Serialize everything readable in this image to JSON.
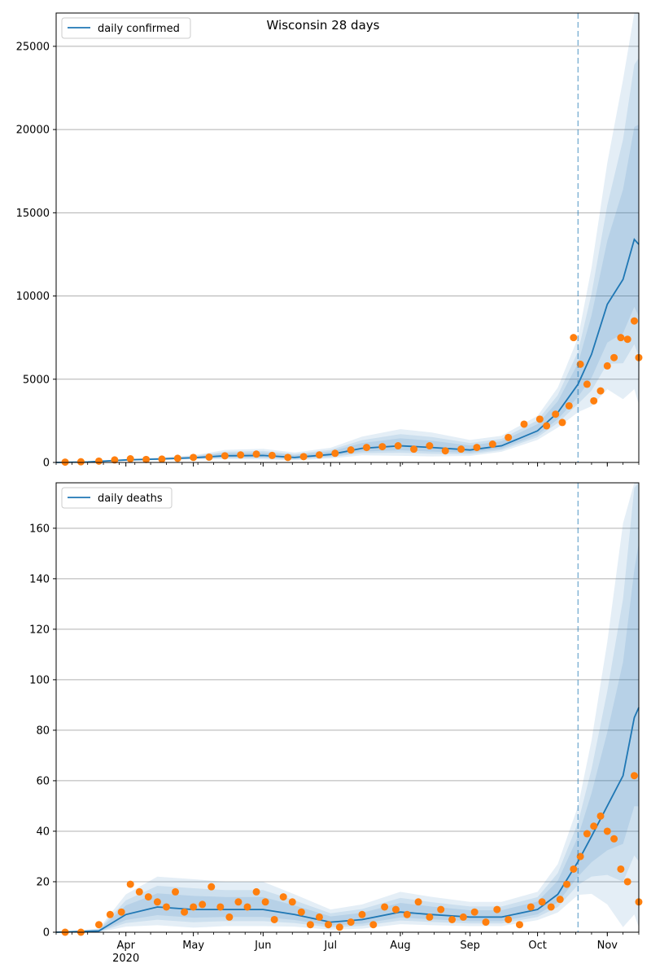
{
  "figure": {
    "title": "Wisconsin 28 days",
    "colors": {
      "model": "#1f77b4",
      "observed": "#ff7f0e",
      "band": "#1f77b4",
      "grid": "#b0b0b0",
      "projection_line": "#1f77b4"
    }
  },
  "chart_data": [
    {
      "type": "line",
      "legend": {
        "label": "daily confirmed",
        "placement": "upper-left"
      },
      "x_range": [
        "2020-03-01",
        "2020-11-15"
      ],
      "ylim": [
        0,
        27000
      ],
      "y_ticks": [
        0,
        5000,
        10000,
        15000,
        20000,
        25000
      ],
      "x_tick_labels": [
        "Apr",
        "May",
        "Jun",
        "Jul",
        "Aug",
        "Sep",
        "Oct",
        "Nov"
      ],
      "x_tick_dates": [
        "2020-04-01",
        "2020-05-01",
        "2020-06-01",
        "2020-07-01",
        "2020-08-01",
        "2020-09-01",
        "2020-10-01",
        "2020-11-01"
      ],
      "x_year_label": "",
      "grid": "y",
      "projection_start": "2020-10-19",
      "model": {
        "dates": [
          "2020-03-01",
          "2020-03-15",
          "2020-04-01",
          "2020-04-15",
          "2020-05-01",
          "2020-05-15",
          "2020-06-01",
          "2020-06-15",
          "2020-07-01",
          "2020-07-15",
          "2020-08-01",
          "2020-08-15",
          "2020-09-01",
          "2020-09-15",
          "2020-10-01",
          "2020-10-10",
          "2020-10-19",
          "2020-10-25",
          "2020-11-01",
          "2020-11-08",
          "2020-11-13",
          "2020-11-15"
        ],
        "values": [
          0,
          30,
          150,
          200,
          280,
          400,
          420,
          300,
          480,
          850,
          1000,
          900,
          750,
          1000,
          1900,
          3000,
          4700,
          6500,
          9500,
          11000,
          13400,
          13100
        ],
        "band_half_widths": [
          0,
          20,
          60,
          100,
          150,
          350,
          400,
          300,
          400,
          700,
          1000,
          900,
          600,
          600,
          900,
          1500,
          2800,
          5200,
          8500,
          12000,
          15000,
          16000
        ]
      },
      "observed": {
        "dates": [
          "2020-03-05",
          "2020-03-12",
          "2020-03-20",
          "2020-03-27",
          "2020-04-03",
          "2020-04-10",
          "2020-04-17",
          "2020-04-24",
          "2020-05-01",
          "2020-05-08",
          "2020-05-15",
          "2020-05-22",
          "2020-05-29",
          "2020-06-05",
          "2020-06-12",
          "2020-06-19",
          "2020-06-26",
          "2020-07-03",
          "2020-07-10",
          "2020-07-17",
          "2020-07-24",
          "2020-07-31",
          "2020-08-07",
          "2020-08-14",
          "2020-08-21",
          "2020-08-28",
          "2020-09-04",
          "2020-09-11",
          "2020-09-18",
          "2020-09-25",
          "2020-10-02",
          "2020-10-05",
          "2020-10-09",
          "2020-10-12",
          "2020-10-15",
          "2020-10-17",
          "2020-10-20",
          "2020-10-23",
          "2020-10-26",
          "2020-10-29",
          "2020-11-01",
          "2020-11-04",
          "2020-11-07",
          "2020-11-10",
          "2020-11-13",
          "2020-11-15"
        ],
        "values": [
          20,
          40,
          80,
          150,
          220,
          180,
          200,
          250,
          300,
          320,
          400,
          450,
          500,
          420,
          300,
          350,
          450,
          550,
          750,
          900,
          950,
          1000,
          800,
          1000,
          700,
          800,
          900,
          1100,
          1500,
          2300,
          2600,
          2200,
          2900,
          2400,
          3400,
          7500,
          5900,
          4700,
          3700,
          4300,
          5800,
          6300,
          7500,
          7400,
          8500,
          6300
        ]
      }
    },
    {
      "type": "line",
      "legend": {
        "label": "daily deaths",
        "placement": "upper-left"
      },
      "x_range": [
        "2020-03-01",
        "2020-11-15"
      ],
      "ylim": [
        0,
        178
      ],
      "y_ticks": [
        0,
        20,
        40,
        60,
        80,
        100,
        120,
        140,
        160
      ],
      "x_tick_labels": [
        "Apr",
        "May",
        "Jun",
        "Jul",
        "Aug",
        "Sep",
        "Oct",
        "Nov"
      ],
      "x_tick_dates": [
        "2020-04-01",
        "2020-05-01",
        "2020-06-01",
        "2020-07-01",
        "2020-08-01",
        "2020-09-01",
        "2020-10-01",
        "2020-11-01"
      ],
      "x_year_label": "2020",
      "grid": "y",
      "projection_start": "2020-10-19",
      "model": {
        "dates": [
          "2020-03-01",
          "2020-03-20",
          "2020-04-01",
          "2020-04-15",
          "2020-05-01",
          "2020-05-15",
          "2020-06-01",
          "2020-06-15",
          "2020-07-01",
          "2020-07-15",
          "2020-08-01",
          "2020-08-15",
          "2020-09-01",
          "2020-09-15",
          "2020-10-01",
          "2020-10-10",
          "2020-10-19",
          "2020-10-25",
          "2020-11-01",
          "2020-11-08",
          "2020-11-13",
          "2020-11-15"
        ],
        "values": [
          0,
          0.5,
          7,
          10,
          9,
          9,
          9,
          7,
          4,
          5,
          8,
          7,
          6,
          6,
          9,
          15,
          28,
          38,
          50,
          62,
          85,
          89
        ],
        "band_half_widths": [
          0,
          1,
          8,
          12,
          12,
          11,
          11,
          8,
          5,
          6,
          8,
          7,
          6,
          6,
          7,
          12,
          22,
          38,
          65,
          100,
          130,
          145
        ]
      },
      "observed": {
        "dates": [
          "2020-03-05",
          "2020-03-12",
          "2020-03-20",
          "2020-03-25",
          "2020-03-30",
          "2020-04-03",
          "2020-04-07",
          "2020-04-11",
          "2020-04-15",
          "2020-04-19",
          "2020-04-23",
          "2020-04-27",
          "2020-05-01",
          "2020-05-05",
          "2020-05-09",
          "2020-05-13",
          "2020-05-17",
          "2020-05-21",
          "2020-05-25",
          "2020-05-29",
          "2020-06-02",
          "2020-06-06",
          "2020-06-10",
          "2020-06-14",
          "2020-06-18",
          "2020-06-22",
          "2020-06-26",
          "2020-06-30",
          "2020-07-05",
          "2020-07-10",
          "2020-07-15",
          "2020-07-20",
          "2020-07-25",
          "2020-07-30",
          "2020-08-04",
          "2020-08-09",
          "2020-08-14",
          "2020-08-19",
          "2020-08-24",
          "2020-08-29",
          "2020-09-03",
          "2020-09-08",
          "2020-09-13",
          "2020-09-18",
          "2020-09-23",
          "2020-09-28",
          "2020-10-03",
          "2020-10-07",
          "2020-10-11",
          "2020-10-14",
          "2020-10-17",
          "2020-10-20",
          "2020-10-23",
          "2020-10-26",
          "2020-10-29",
          "2020-11-01",
          "2020-11-04",
          "2020-11-07",
          "2020-11-10",
          "2020-11-13",
          "2020-11-15"
        ],
        "values": [
          0,
          0,
          3,
          7,
          8,
          19,
          16,
          14,
          12,
          10,
          16,
          8,
          10,
          11,
          18,
          10,
          6,
          12,
          10,
          16,
          12,
          5,
          14,
          12,
          8,
          3,
          6,
          3,
          2,
          4,
          7,
          3,
          10,
          9,
          7,
          12,
          6,
          9,
          5,
          6,
          8,
          4,
          9,
          5,
          3,
          10,
          12,
          10,
          13,
          19,
          25,
          30,
          39,
          42,
          46,
          40,
          37,
          25,
          20,
          62,
          12
        ]
      }
    }
  ]
}
